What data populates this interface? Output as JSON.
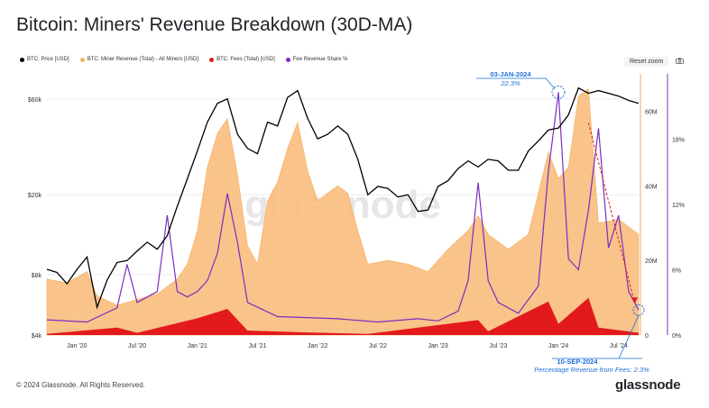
{
  "title": "Bitcoin: Miners' Revenue Breakdown (30D-MA)",
  "legend": [
    {
      "label": "BTC: Price [USD]",
      "color": "#000000"
    },
    {
      "label": "BTC: Miner Revenue (Total) - All Miners [USD]",
      "color": "#f7b267"
    },
    {
      "label": "BTC: Fees (Total) [USD]",
      "color": "#e31a1c"
    },
    {
      "label": "Fee Revenue Share %",
      "color": "#7b2fbf"
    }
  ],
  "toolbar": {
    "reset_label": "Reset zoom"
  },
  "footer": {
    "copyright": "© 2024 Glassnode. All Rights Reserved.",
    "brand": "glassnode"
  },
  "watermark": "glassnode",
  "annotations": {
    "top": {
      "date": "03-JAN-2024",
      "value": "22.3%"
    },
    "bottom": {
      "date": "10-SEP-2024",
      "text": "Percentage Revenue from Fees: 2.3%"
    }
  },
  "chart_data": {
    "type": "line",
    "x_ticks": [
      "Jan '20",
      "Jul '20",
      "Jan '21",
      "Jul '21",
      "Jan '22",
      "Jul '22",
      "Jan '23",
      "Jul '23",
      "Jan '24",
      "Jul '24"
    ],
    "y_left": {
      "scale": "log",
      "ticks": [
        "$4k",
        "$8k",
        "$20k",
        "$60k"
      ]
    },
    "y_right_revenue": {
      "ticks": [
        "0",
        "20M",
        "40M",
        "60M"
      ],
      "range": [
        0,
        70000000
      ]
    },
    "y_right_share": {
      "ticks": [
        "0%",
        "6%",
        "12%",
        "18%"
      ],
      "range": [
        0,
        24
      ]
    },
    "time_range": [
      "2019-10",
      "2024-09"
    ],
    "series": [
      {
        "name": "BTC: Price [USD]",
        "axis": "left",
        "points": [
          [
            "2019-10",
            8500
          ],
          [
            "2019-11",
            8200
          ],
          [
            "2019-12",
            7200
          ],
          [
            "2020-01",
            8500
          ],
          [
            "2020-02",
            9800
          ],
          [
            "2020-03",
            5500
          ],
          [
            "2020-04",
            7500
          ],
          [
            "2020-05",
            9200
          ],
          [
            "2020-06",
            9400
          ],
          [
            "2020-07",
            10500
          ],
          [
            "2020-08",
            11600
          ],
          [
            "2020-09",
            10700
          ],
          [
            "2020-10",
            12500
          ],
          [
            "2020-11",
            17500
          ],
          [
            "2020-12",
            24000
          ],
          [
            "2021-01",
            33000
          ],
          [
            "2021-02",
            46000
          ],
          [
            "2021-03",
            57000
          ],
          [
            "2021-04",
            60000
          ],
          [
            "2021-05",
            40000
          ],
          [
            "2021-06",
            34000
          ],
          [
            "2021-07",
            32000
          ],
          [
            "2021-08",
            46000
          ],
          [
            "2021-09",
            44000
          ],
          [
            "2021-10",
            61000
          ],
          [
            "2021-11",
            66000
          ],
          [
            "2021-12",
            48000
          ],
          [
            "2022-01",
            38000
          ],
          [
            "2022-02",
            40000
          ],
          [
            "2022-03",
            44000
          ],
          [
            "2022-04",
            40000
          ],
          [
            "2022-05",
            30000
          ],
          [
            "2022-06",
            20000
          ],
          [
            "2022-07",
            22000
          ],
          [
            "2022-08",
            21500
          ],
          [
            "2022-09",
            19500
          ],
          [
            "2022-10",
            20000
          ],
          [
            "2022-11",
            16500
          ],
          [
            "2022-12",
            16800
          ],
          [
            "2023-01",
            22000
          ],
          [
            "2023-02",
            23500
          ],
          [
            "2023-03",
            27000
          ],
          [
            "2023-04",
            29500
          ],
          [
            "2023-05",
            27500
          ],
          [
            "2023-06",
            30000
          ],
          [
            "2023-07",
            29500
          ],
          [
            "2023-08",
            26500
          ],
          [
            "2023-09",
            26500
          ],
          [
            "2023-10",
            33000
          ],
          [
            "2023-11",
            37000
          ],
          [
            "2023-12",
            42000
          ],
          [
            "2024-01",
            43000
          ],
          [
            "2024-02",
            50000
          ],
          [
            "2024-03",
            68000
          ],
          [
            "2024-04",
            64000
          ],
          [
            "2024-05",
            66000
          ],
          [
            "2024-06",
            64000
          ],
          [
            "2024-07",
            62000
          ],
          [
            "2024-08",
            59000
          ],
          [
            "2024-09",
            57000
          ]
        ]
      },
      {
        "name": "BTC: Miner Revenue (Total) - All Miners [USD]",
        "axis": "right_revenue",
        "points": [
          [
            "2019-10",
            15000000
          ],
          [
            "2019-12",
            14000000
          ],
          [
            "2020-02",
            17000000
          ],
          [
            "2020-03",
            10500000
          ],
          [
            "2020-05",
            8000000
          ],
          [
            "2020-07",
            9500000
          ],
          [
            "2020-09",
            11000000
          ],
          [
            "2020-11",
            15000000
          ],
          [
            "2020-12",
            19000000
          ],
          [
            "2021-01",
            28000000
          ],
          [
            "2021-02",
            45000000
          ],
          [
            "2021-03",
            54000000
          ],
          [
            "2021-04",
            58000000
          ],
          [
            "2021-05",
            43000000
          ],
          [
            "2021-06",
            24000000
          ],
          [
            "2021-07",
            19000000
          ],
          [
            "2021-08",
            36000000
          ],
          [
            "2021-09",
            41000000
          ],
          [
            "2021-10",
            50000000
          ],
          [
            "2021-11",
            57000000
          ],
          [
            "2021-12",
            44000000
          ],
          [
            "2022-01",
            36000000
          ],
          [
            "2022-03",
            40000000
          ],
          [
            "2022-04",
            38000000
          ],
          [
            "2022-05",
            28000000
          ],
          [
            "2022-06",
            19000000
          ],
          [
            "2022-08",
            20000000
          ],
          [
            "2022-10",
            19000000
          ],
          [
            "2022-12",
            17000000
          ],
          [
            "2023-02",
            23000000
          ],
          [
            "2023-04",
            28000000
          ],
          [
            "2023-05",
            32000000
          ],
          [
            "2023-06",
            27000000
          ],
          [
            "2023-08",
            23000000
          ],
          [
            "2023-10",
            27000000
          ],
          [
            "2023-12",
            49000000
          ],
          [
            "2024-01",
            42000000
          ],
          [
            "2024-02",
            45000000
          ],
          [
            "2024-03",
            64000000
          ],
          [
            "2024-04",
            66000000
          ],
          [
            "2024-05",
            30000000
          ],
          [
            "2024-07",
            31000000
          ],
          [
            "2024-09",
            27000000
          ]
        ]
      },
      {
        "name": "BTC: Fees (Total) [USD]",
        "axis": "right_revenue",
        "points": [
          [
            "2019-10",
            300000
          ],
          [
            "2020-05",
            2000000
          ],
          [
            "2020-07",
            600000
          ],
          [
            "2021-01",
            4500000
          ],
          [
            "2021-04",
            7000000
          ],
          [
            "2021-06",
            1200000
          ],
          [
            "2021-12",
            700000
          ],
          [
            "2022-06",
            300000
          ],
          [
            "2023-05",
            4000000
          ],
          [
            "2023-06",
            1000000
          ],
          [
            "2023-12",
            9000000
          ],
          [
            "2024-01",
            3000000
          ],
          [
            "2024-04",
            10000000
          ],
          [
            "2024-05",
            2000000
          ],
          [
            "2024-09",
            600000
          ]
        ]
      },
      {
        "name": "Fee Revenue Share %",
        "axis": "right_share",
        "points": [
          [
            "2019-10",
            1.4
          ],
          [
            "2020-02",
            1.2
          ],
          [
            "2020-05",
            2.5
          ],
          [
            "2020-06",
            6.5
          ],
          [
            "2020-07",
            3.0
          ],
          [
            "2020-09",
            4.0
          ],
          [
            "2020-10",
            11.0
          ],
          [
            "2020-11",
            4.0
          ],
          [
            "2020-12",
            3.5
          ],
          [
            "2021-01",
            4.0
          ],
          [
            "2021-02",
            5.0
          ],
          [
            "2021-03",
            7.5
          ],
          [
            "2021-04",
            13.0
          ],
          [
            "2021-05",
            8.5
          ],
          [
            "2021-06",
            3.0
          ],
          [
            "2021-09",
            1.7
          ],
          [
            "2022-03",
            1.5
          ],
          [
            "2022-07",
            1.2
          ],
          [
            "2022-11",
            1.5
          ],
          [
            "2023-01",
            1.3
          ],
          [
            "2023-03",
            2.2
          ],
          [
            "2023-04",
            5.0
          ],
          [
            "2023-05",
            14.0
          ],
          [
            "2023-06",
            5.0
          ],
          [
            "2023-07",
            3.0
          ],
          [
            "2023-09",
            2.0
          ],
          [
            "2023-11",
            4.5
          ],
          [
            "2023-12",
            15.0
          ],
          [
            "2024-01",
            22.3
          ],
          [
            "2024-02",
            7.0
          ],
          [
            "2024-03",
            6.0
          ],
          [
            "2024-04",
            11.5
          ],
          [
            "2024-05",
            19.0
          ],
          [
            "2024-06",
            8.0
          ],
          [
            "2024-07",
            11.0
          ],
          [
            "2024-08",
            4.0
          ],
          [
            "2024-09",
            2.3
          ]
        ]
      }
    ]
  }
}
